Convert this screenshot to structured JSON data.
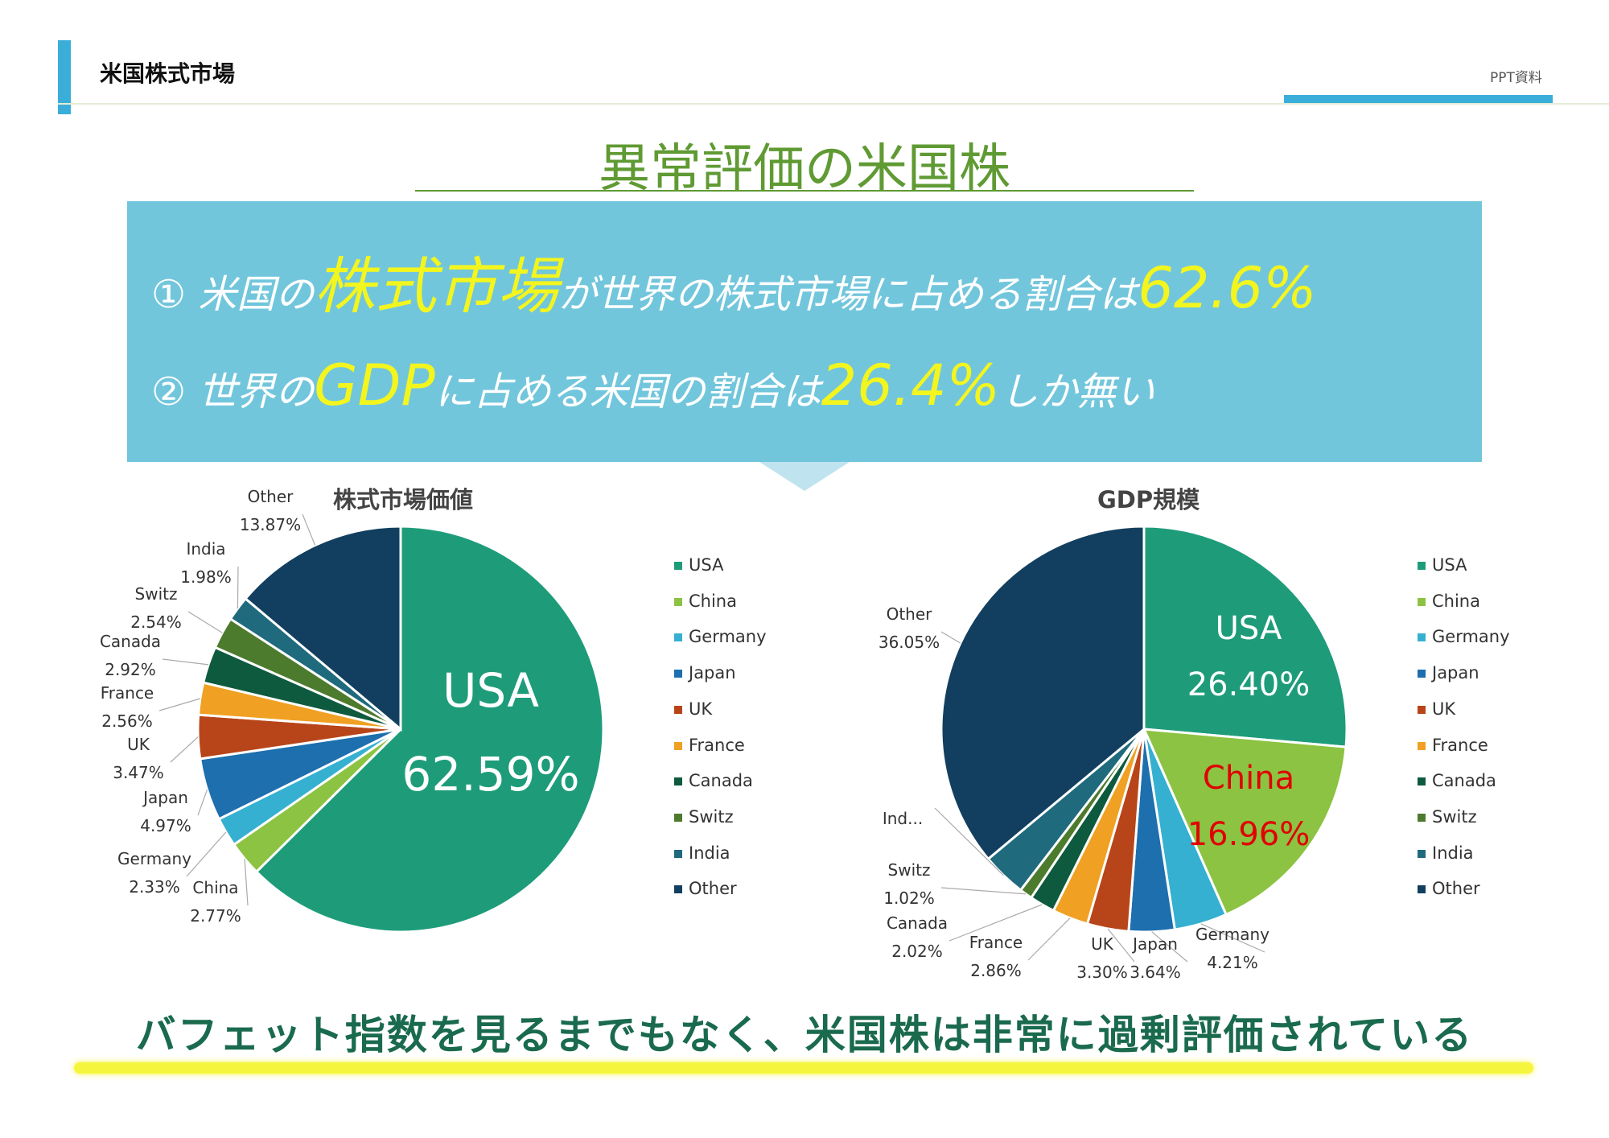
{
  "header": {
    "title": "米国株式市場",
    "tag": "PPT資料"
  },
  "slide_title": "異常評価の米国株",
  "banner": {
    "line1": {
      "a": "① 米国の",
      "b": "株式市場",
      "c": "が世界の株式市場に占める割合は",
      "d": "62.6%"
    },
    "line2": {
      "a": "② 世界の",
      "b": "GDP",
      "c": "に占める米国の割合は",
      "d": "26.4%",
      "e": "しか無い"
    }
  },
  "conclusion": "バフェット指数を見るまでもなく、米国株は非常に過剰評価されている",
  "colors": {
    "USA": "#1e9c7a",
    "China": "#8cc342",
    "Germany": "#36b0d0",
    "Japan": "#1d6fae",
    "UK": "#b84519",
    "France": "#f0a023",
    "Canada": "#0e5a3e",
    "Switz": "#4d7b2d",
    "India": "#1f6a7d",
    "Other": "#123f5f"
  },
  "chart_data": [
    {
      "type": "pie",
      "title": "株式市場価値",
      "categories": [
        "USA",
        "China",
        "Germany",
        "Japan",
        "UK",
        "France",
        "Canada",
        "Switz",
        "India",
        "Other"
      ],
      "values": [
        62.59,
        2.77,
        2.33,
        4.97,
        3.47,
        2.56,
        2.92,
        2.54,
        1.98,
        13.87
      ],
      "labels": {
        "USA": [
          "USA",
          "62.59%"
        ],
        "China": [
          "China",
          "2.77%"
        ],
        "Germany": [
          "Germany",
          "2.33%"
        ],
        "Japan": [
          "Japan",
          "4.97%"
        ],
        "UK": [
          "UK",
          "3.47%"
        ],
        "France": [
          "France",
          "2.56%"
        ],
        "Canada": [
          "Canada",
          "2.92%"
        ],
        "Switz": [
          "Switz",
          "2.54%"
        ],
        "India": [
          "India",
          "1.98%"
        ],
        "Other": [
          "Other",
          "13.87%"
        ]
      },
      "legend": [
        "USA",
        "China",
        "Germany",
        "Japan",
        "UK",
        "France",
        "Canada",
        "Switz",
        "India",
        "Other"
      ],
      "legend_position": "right"
    },
    {
      "type": "pie",
      "title": "GDP規模",
      "categories": [
        "USA",
        "China",
        "Germany",
        "Japan",
        "UK",
        "France",
        "Canada",
        "Switz",
        "India",
        "Other"
      ],
      "values": [
        26.4,
        16.96,
        4.21,
        3.64,
        3.3,
        2.86,
        2.02,
        1.02,
        3.54,
        36.05
      ],
      "labels": {
        "USA": [
          "USA",
          "26.40%"
        ],
        "China": [
          "China",
          "16.96%"
        ],
        "Germany": [
          "Germany",
          "4.21%"
        ],
        "Japan": [
          "Japan",
          "3.64%"
        ],
        "UK": [
          "UK",
          "3.30%"
        ],
        "France": [
          "France",
          "2.86%"
        ],
        "Canada": [
          "Canada",
          "2.02%"
        ],
        "Switz": [
          "Switz",
          "1.02%"
        ],
        "India": [
          "Ind...",
          ""
        ],
        "Other": [
          "Other",
          "36.05%"
        ]
      },
      "legend": [
        "USA",
        "China",
        "Germany",
        "Japan",
        "UK",
        "France",
        "Canada",
        "Switz",
        "India",
        "Other"
      ],
      "legend_position": "right"
    }
  ]
}
